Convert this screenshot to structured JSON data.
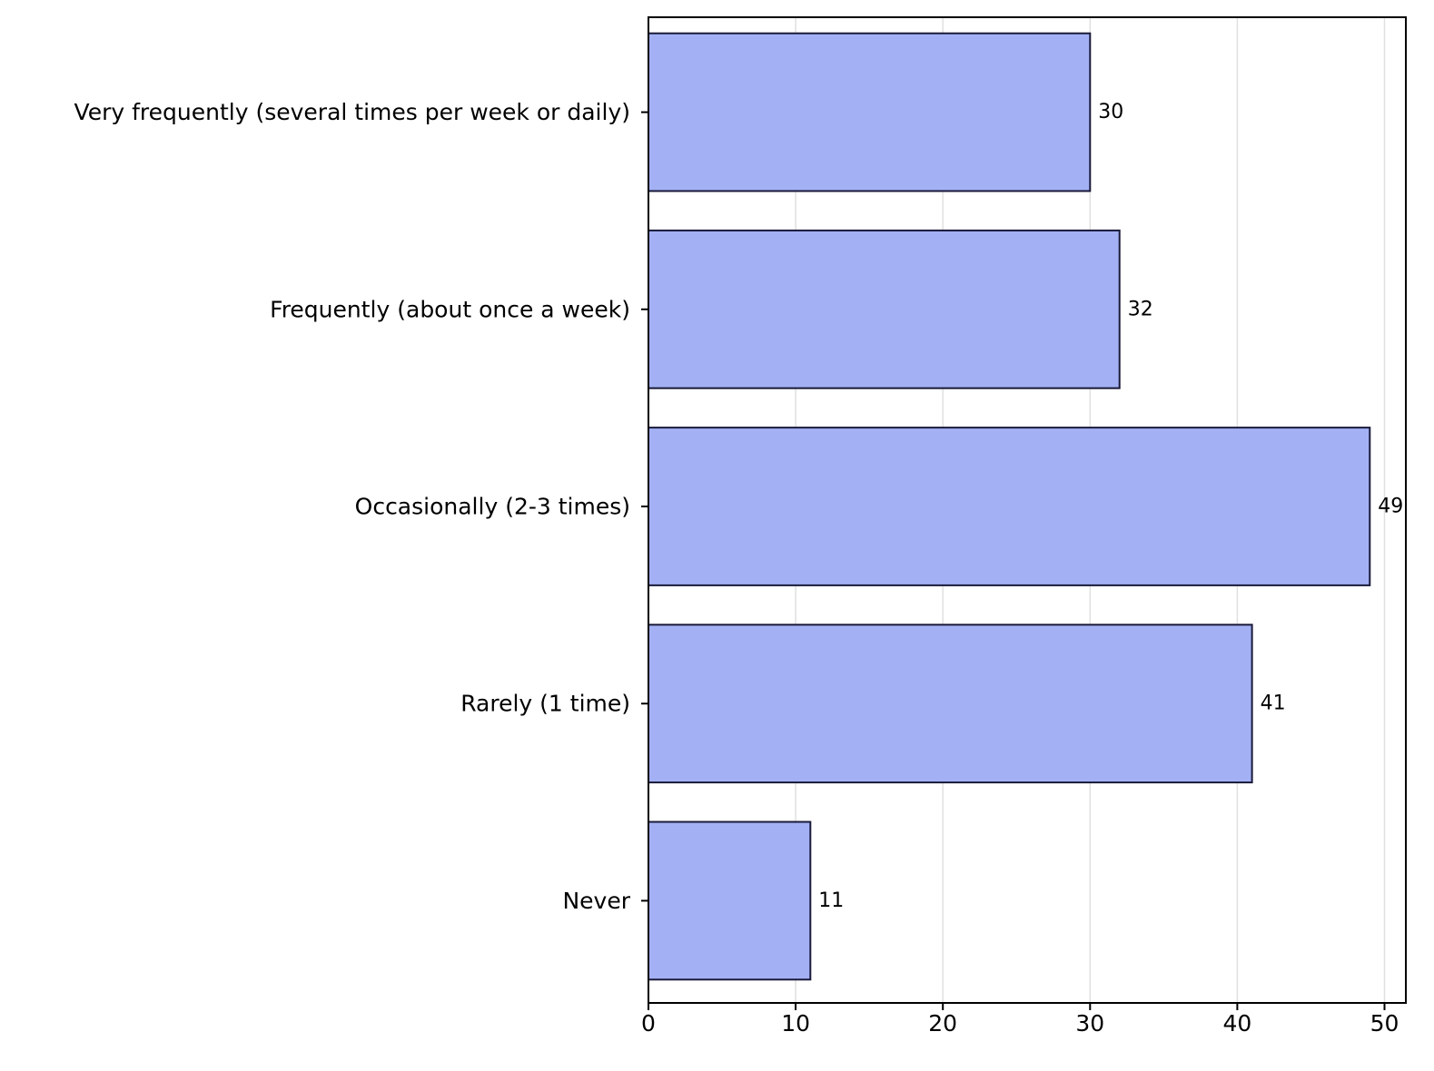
{
  "chart_data": {
    "type": "bar",
    "orientation": "horizontal",
    "title": "",
    "xlabel": "",
    "ylabel": "",
    "categories": [
      "Very frequently (several times per week or daily)",
      "Frequently (about once a week)",
      "Occasionally (2-3 times)",
      "Rarely (1 time)",
      "Never"
    ],
    "values": [
      30,
      32,
      49,
      41,
      11
    ],
    "xlim": [
      0,
      51.45
    ],
    "xticks": [
      0,
      10,
      20,
      30,
      40,
      50
    ],
    "grid": "vertical",
    "legend": "none",
    "data_labels": true,
    "colors": {
      "bar_fill": "#a3b1f4",
      "bar_edge": "#1a1a3a",
      "grid": "#e0e0e0",
      "axis": "#000000"
    }
  }
}
